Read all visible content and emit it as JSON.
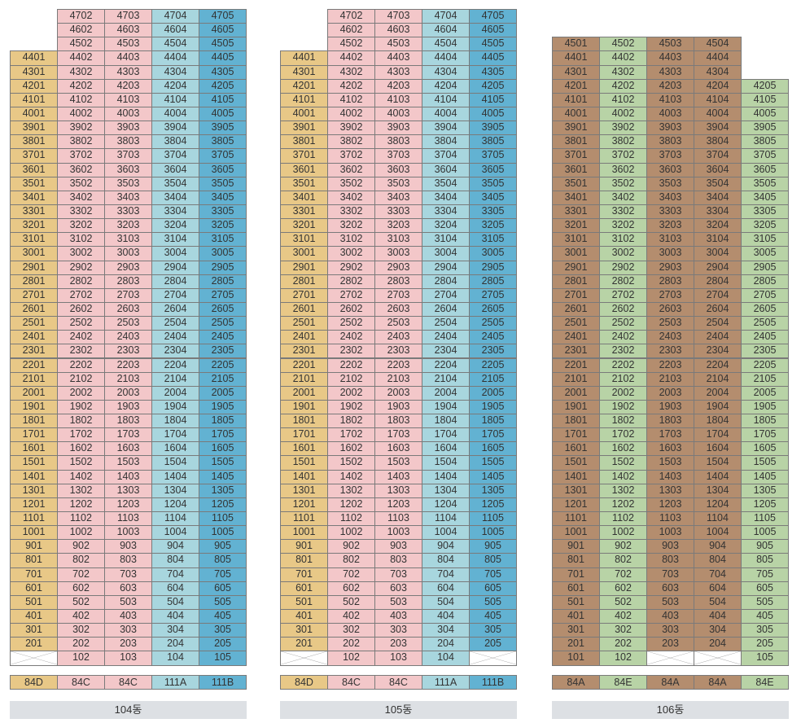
{
  "colors": {
    "84D": "#e8c887",
    "84C": "#f3c7c9",
    "111A": "#a8d6de",
    "111B": "#62b2d2",
    "84A": "#b48d6e",
    "84E": "#b8d3a6"
  },
  "buildings": [
    {
      "name": "104동",
      "types": [
        "84D",
        "84C",
        "84C",
        "111A",
        "111B"
      ],
      "top_floor": [
        44,
        47,
        47,
        47,
        47
      ],
      "bottom_floor": [
        1,
        1,
        1,
        1,
        1
      ],
      "empty_units": [
        "201"
      ]
    },
    {
      "name": "105동",
      "types": [
        "84D",
        "84C",
        "84C",
        "111A",
        "111B"
      ],
      "top_floor": [
        44,
        47,
        47,
        47,
        47
      ],
      "bottom_floor": [
        1,
        1,
        1,
        1,
        1
      ],
      "empty_units": [
        "201",
        "205"
      ]
    },
    {
      "name": "106동",
      "types": [
        "84A",
        "84E",
        "84A",
        "84A",
        "84E"
      ],
      "top_floor": [
        45,
        45,
        45,
        45,
        42
      ],
      "bottom_floor": [
        1,
        1,
        1,
        1,
        1
      ],
      "empty_units": [
        "203",
        "204"
      ]
    }
  ]
}
